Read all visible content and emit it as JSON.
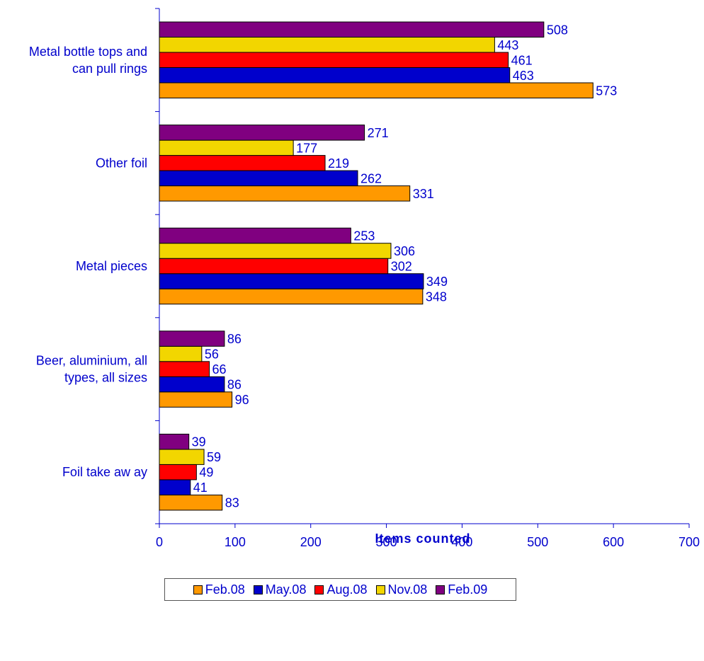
{
  "chart_data": {
    "type": "bar",
    "orientation": "horizontal",
    "title": "",
    "xlabel": "Items counted",
    "ylabel": "",
    "xlim": [
      0,
      700
    ],
    "x_ticks": [
      0,
      100,
      200,
      300,
      400,
      500,
      600,
      700
    ],
    "grid": false,
    "legend_position": "bottom",
    "categories": [
      [
        "Metal bottle tops and",
        "can pull rings"
      ],
      [
        "Other foil"
      ],
      [
        "Metal pieces"
      ],
      [
        "Beer, aluminium, all",
        "types, all sizes"
      ],
      [
        "Foil take aw ay"
      ]
    ],
    "series": [
      {
        "name": "Feb.08",
        "color": "#ff9900",
        "values": [
          573,
          331,
          348,
          96,
          83
        ]
      },
      {
        "name": "May.08",
        "color": "#0000cc",
        "values": [
          463,
          262,
          349,
          86,
          41
        ]
      },
      {
        "name": "Aug.08",
        "color": "#ff0000",
        "values": [
          461,
          219,
          302,
          66,
          49
        ]
      },
      {
        "name": "Nov.08",
        "color": "#f2d600",
        "values": [
          443,
          177,
          306,
          56,
          59
        ]
      },
      {
        "name": "Feb.09",
        "color": "#800080",
        "values": [
          508,
          271,
          253,
          86,
          39
        ]
      }
    ],
    "colors": {
      "text": "#0000cc",
      "axis": "#0000cc",
      "bar_outline": "#000000"
    }
  }
}
